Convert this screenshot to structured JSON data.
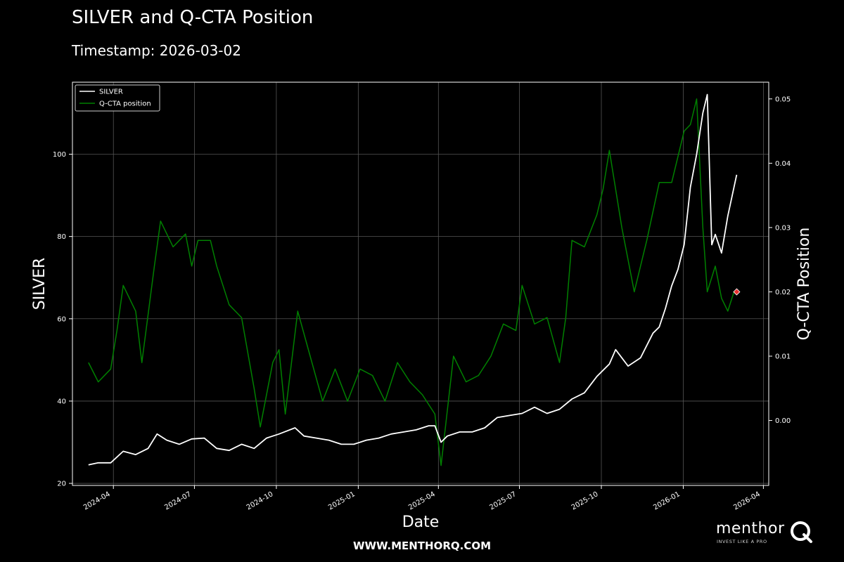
{
  "header": {
    "title": "SILVER and Q-CTA Position",
    "subtitle": "Timestamp: 2026-03-02"
  },
  "footer": {
    "website": "WWW.MENTHORQ.COM"
  },
  "brand": {
    "name": "menthor",
    "tagline": "INVEST LIKE A PRO"
  },
  "colors": {
    "background": "#000000",
    "silver_line": "#ffffff",
    "cta_line": "#008000",
    "marker": "#e8312f",
    "grid": "#555555"
  },
  "chart_data": {
    "type": "line",
    "xlabel": "Date",
    "ylabel": "SILVER",
    "y2label": "Q-CTA Position",
    "xlim": [
      "2024-02-15",
      "2026-04-07"
    ],
    "ylim": [
      19.5,
      117.5
    ],
    "y2lim": [
      -0.0101,
      0.0526
    ],
    "x_ticks": [
      "2024-04",
      "2024-07",
      "2024-10",
      "2025-01",
      "2025-04",
      "2025-07",
      "2025-10",
      "2026-01",
      "2026-04"
    ],
    "x_tick_dates": [
      "2024-04-01",
      "2024-07-01",
      "2024-10-01",
      "2025-01-01",
      "2025-04-01",
      "2025-07-01",
      "2025-10-01",
      "2026-01-01",
      "2026-04-01"
    ],
    "y_ticks": [
      20,
      40,
      60,
      80,
      100
    ],
    "y2_ticks": [
      0.0,
      0.01,
      0.02,
      0.03,
      0.04,
      0.05
    ],
    "grid": true,
    "legend_position": "top-left",
    "series": [
      {
        "name": "SILVER",
        "axis": "left",
        "color": "#ffffff",
        "x": [
          "2024-03-04",
          "2024-03-15",
          "2024-03-29",
          "2024-04-12",
          "2024-04-26",
          "2024-05-10",
          "2024-05-20",
          "2024-05-31",
          "2024-06-14",
          "2024-06-28",
          "2024-07-12",
          "2024-07-26",
          "2024-08-09",
          "2024-08-23",
          "2024-09-06",
          "2024-09-20",
          "2024-10-04",
          "2024-10-22",
          "2024-11-01",
          "2024-11-15",
          "2024-11-29",
          "2024-12-13",
          "2024-12-27",
          "2025-01-10",
          "2025-01-24",
          "2025-02-07",
          "2025-02-21",
          "2025-03-07",
          "2025-03-21",
          "2025-03-28",
          "2025-04-04",
          "2025-04-11",
          "2025-04-25",
          "2025-05-09",
          "2025-05-23",
          "2025-06-06",
          "2025-06-20",
          "2025-07-04",
          "2025-07-18",
          "2025-08-01",
          "2025-08-15",
          "2025-08-29",
          "2025-09-12",
          "2025-09-26",
          "2025-10-10",
          "2025-10-17",
          "2025-10-31",
          "2025-11-14",
          "2025-11-28",
          "2025-12-05",
          "2025-12-12",
          "2025-12-19",
          "2025-12-26",
          "2026-01-02",
          "2026-01-09",
          "2026-01-16",
          "2026-01-23",
          "2026-01-28",
          "2026-02-02",
          "2026-02-06",
          "2026-02-13",
          "2026-02-20",
          "2026-02-27",
          "2026-03-02"
        ],
        "values": [
          24.5,
          25.0,
          25.0,
          27.8,
          27.0,
          28.5,
          32.0,
          30.5,
          29.5,
          30.8,
          31.0,
          28.5,
          28.0,
          29.5,
          28.5,
          31.0,
          32.0,
          33.5,
          31.5,
          31.0,
          30.5,
          29.5,
          29.5,
          30.5,
          31.0,
          32.0,
          32.5,
          33.0,
          34.0,
          34.0,
          30.0,
          31.5,
          32.5,
          32.5,
          33.5,
          36.0,
          36.5,
          37.0,
          38.5,
          37.0,
          38.0,
          40.5,
          42.0,
          46.0,
          49.0,
          52.5,
          48.5,
          50.5,
          56.5,
          58.0,
          62.5,
          68.0,
          72.0,
          78.0,
          92.0,
          100.0,
          110.0,
          114.5,
          78.0,
          80.5,
          76.0,
          85.0,
          92.0,
          95.0
        ]
      },
      {
        "name": "Q-CTA position",
        "axis": "right",
        "color": "#008000",
        "x": [
          "2024-03-04",
          "2024-03-15",
          "2024-03-29",
          "2024-04-05",
          "2024-04-12",
          "2024-04-26",
          "2024-05-03",
          "2024-05-17",
          "2024-05-24",
          "2024-06-07",
          "2024-06-21",
          "2024-06-28",
          "2024-07-05",
          "2024-07-19",
          "2024-07-26",
          "2024-08-09",
          "2024-08-23",
          "2024-09-06",
          "2024-09-13",
          "2024-09-27",
          "2024-10-04",
          "2024-10-11",
          "2024-10-25",
          "2024-11-08",
          "2024-11-22",
          "2024-12-06",
          "2024-12-20",
          "2025-01-03",
          "2025-01-17",
          "2025-01-31",
          "2025-02-14",
          "2025-02-28",
          "2025-03-14",
          "2025-03-28",
          "2025-04-04",
          "2025-04-18",
          "2025-05-02",
          "2025-05-16",
          "2025-05-30",
          "2025-06-13",
          "2025-06-27",
          "2025-07-04",
          "2025-07-18",
          "2025-08-01",
          "2025-08-15",
          "2025-08-22",
          "2025-08-29",
          "2025-09-12",
          "2025-09-26",
          "2025-10-03",
          "2025-10-10",
          "2025-10-24",
          "2025-11-07",
          "2025-11-21",
          "2025-12-05",
          "2025-12-19",
          "2026-01-02",
          "2026-01-09",
          "2026-01-16",
          "2026-01-23",
          "2026-01-28",
          "2026-02-06",
          "2026-02-13",
          "2026-02-20",
          "2026-02-27",
          "2026-03-02"
        ],
        "values": [
          0.009,
          0.006,
          0.008,
          0.014,
          0.021,
          0.017,
          0.009,
          0.024,
          0.031,
          0.027,
          0.029,
          0.024,
          0.028,
          0.028,
          0.024,
          0.018,
          0.016,
          0.005,
          -0.001,
          0.009,
          0.011,
          0.001,
          0.017,
          0.01,
          0.003,
          0.008,
          0.003,
          0.008,
          0.007,
          0.003,
          0.009,
          0.006,
          0.004,
          0.001,
          -0.007,
          0.01,
          0.006,
          0.007,
          0.01,
          0.015,
          0.014,
          0.021,
          0.015,
          0.016,
          0.009,
          0.016,
          0.028,
          0.027,
          0.032,
          0.036,
          0.042,
          0.03,
          0.02,
          0.028,
          0.037,
          0.037,
          0.045,
          0.046,
          0.05,
          0.03,
          0.02,
          0.024,
          0.019,
          0.017,
          0.02,
          0.02
        ]
      }
    ],
    "marker": {
      "date": "2026-03-02",
      "value": 0.02,
      "axis": "right",
      "color": "#e8312f"
    }
  }
}
